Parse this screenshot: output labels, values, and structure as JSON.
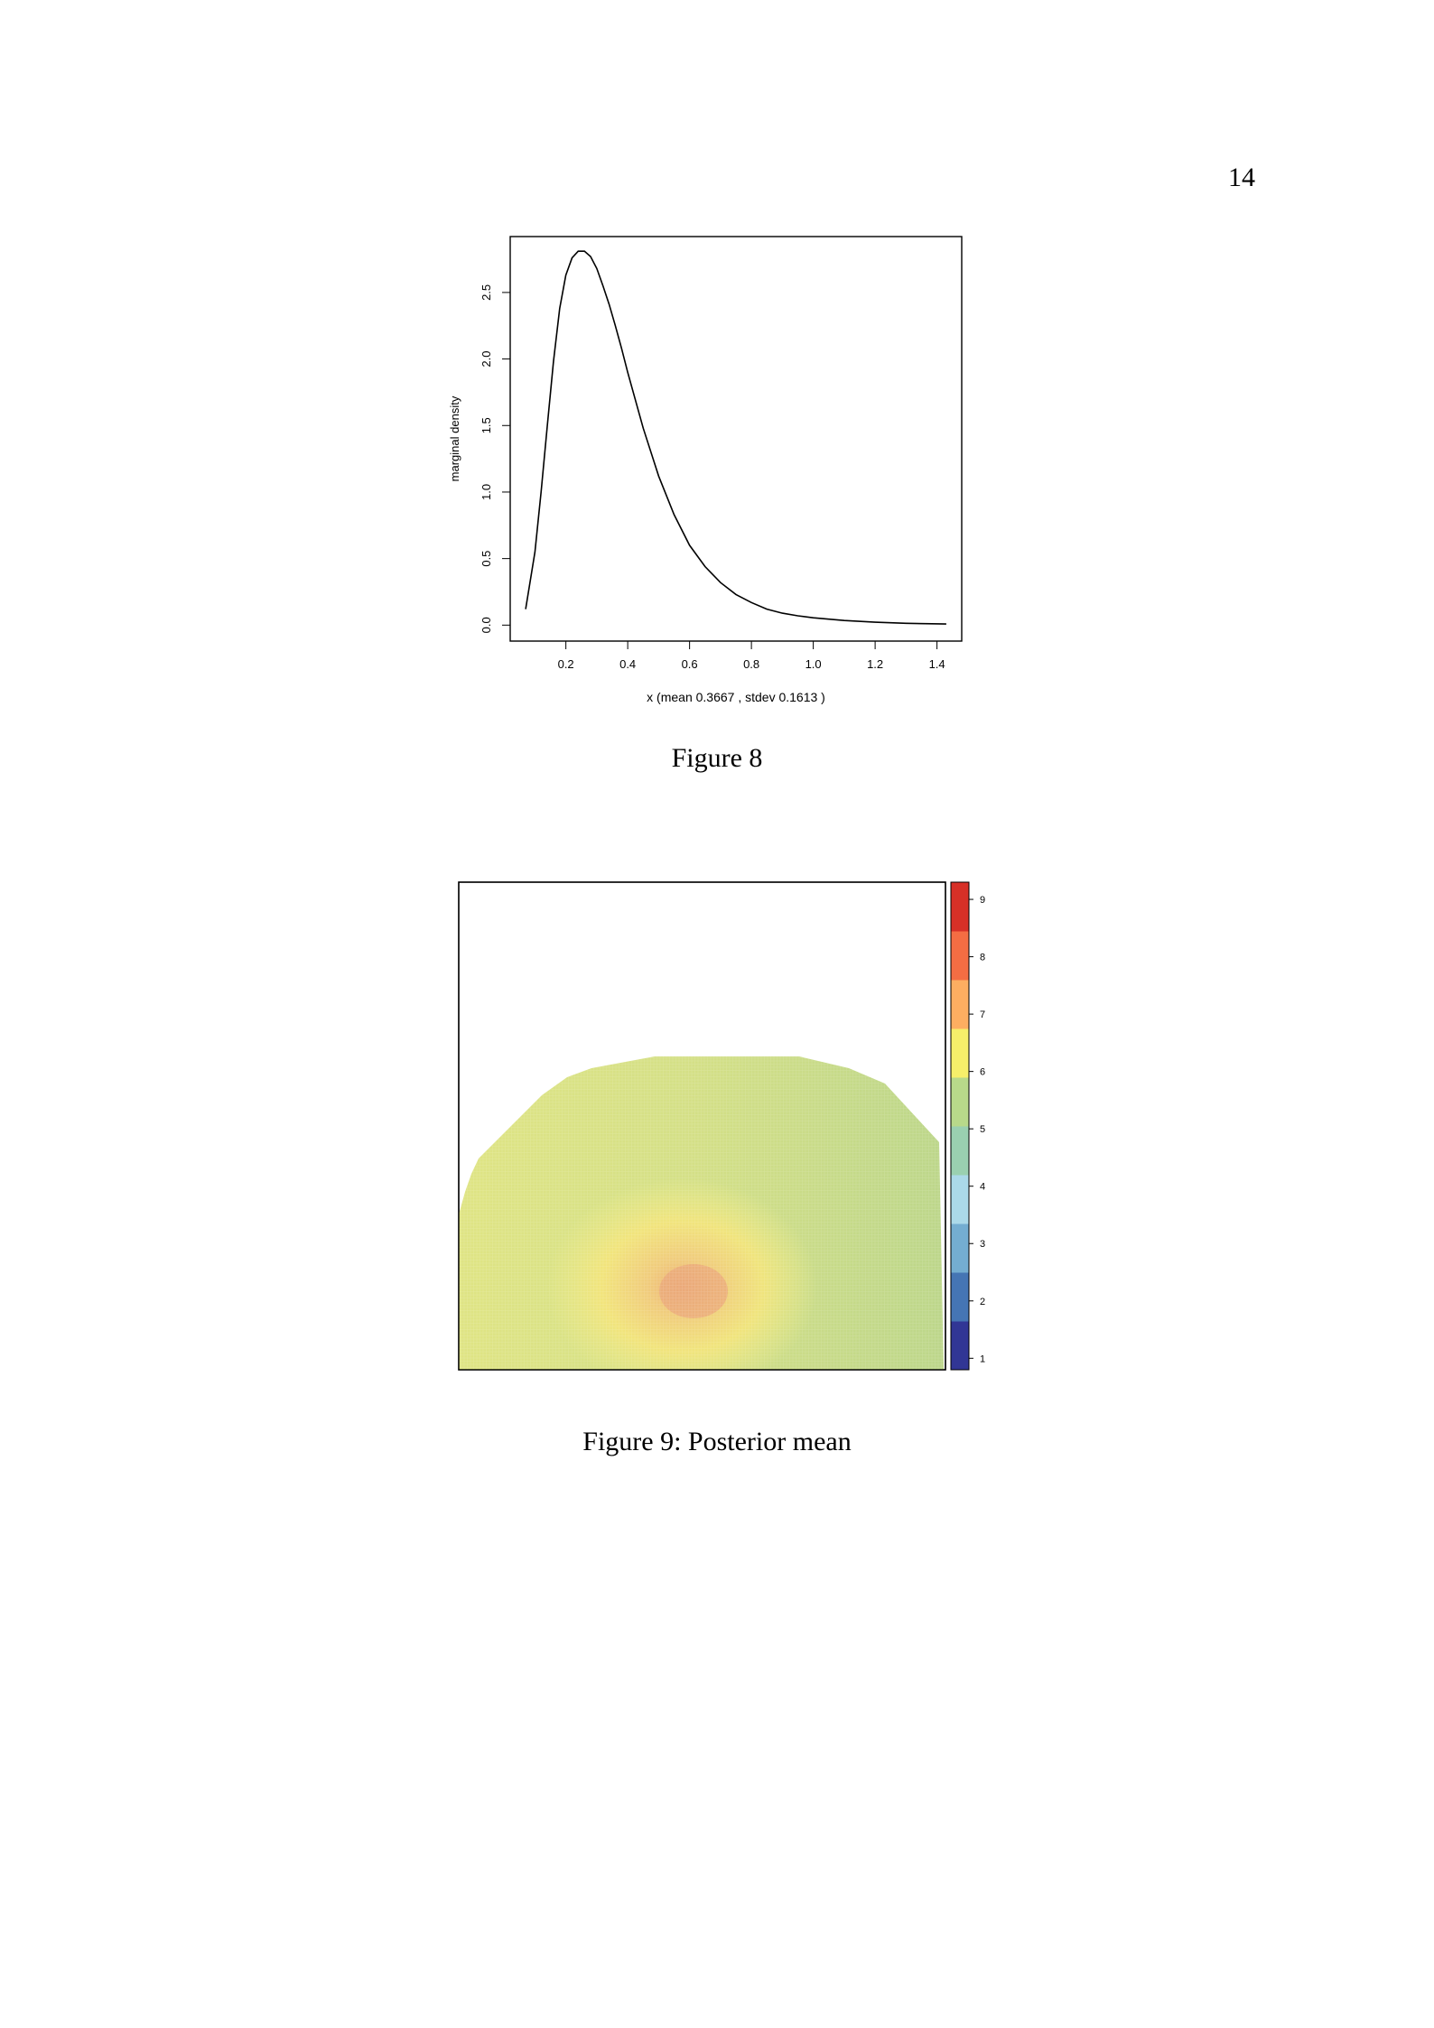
{
  "page": {
    "number": "14"
  },
  "figure8": {
    "caption": "Figure 8",
    "chart_data": {
      "type": "line",
      "title": "",
      "xlabel": "x (mean 0.3667 , stdev 0.1613 )",
      "ylabel": "marginal density",
      "xlim": [
        0.02,
        1.48
      ],
      "ylim": [
        -0.12,
        2.92
      ],
      "xticks": [
        0.2,
        0.4,
        0.6,
        0.8,
        1.0,
        1.2,
        1.4
      ],
      "xtick_labels": [
        "0.2",
        "0.4",
        "0.6",
        "0.8",
        "1.0",
        "1.2",
        "1.4"
      ],
      "yticks": [
        0.0,
        0.5,
        1.0,
        1.5,
        2.0,
        2.5
      ],
      "ytick_labels": [
        "0.0",
        "0.5",
        "1.0",
        "1.5",
        "2.0",
        "2.5"
      ],
      "grid": false,
      "series": [
        {
          "x": [
            0.07,
            0.1,
            0.12,
            0.14,
            0.16,
            0.18,
            0.2,
            0.22,
            0.24,
            0.26,
            0.28,
            0.3,
            0.32,
            0.34,
            0.36,
            0.38,
            0.4,
            0.45,
            0.5,
            0.55,
            0.6,
            0.65,
            0.7,
            0.75,
            0.8,
            0.85,
            0.9,
            0.95,
            1.0,
            1.1,
            1.2,
            1.3,
            1.43
          ],
          "y": [
            0.12,
            0.55,
            1.0,
            1.5,
            1.98,
            2.38,
            2.63,
            2.76,
            2.81,
            2.81,
            2.77,
            2.68,
            2.55,
            2.41,
            2.25,
            2.08,
            1.9,
            1.48,
            1.12,
            0.83,
            0.6,
            0.44,
            0.32,
            0.23,
            0.17,
            0.12,
            0.09,
            0.07,
            0.055,
            0.035,
            0.022,
            0.014,
            0.008
          ]
        }
      ]
    }
  },
  "figure9": {
    "caption": "Figure 9:  Posterior mean",
    "chart_data": {
      "type": "heatmap",
      "title": "",
      "xlabel": "",
      "ylabel": "",
      "description_values": {
        "background_level": 5.6,
        "peak_level": 7.2
      },
      "colorbar": {
        "min": 0.8,
        "max": 9.3,
        "ticks": [
          1,
          2,
          3,
          4,
          5,
          6,
          7,
          8,
          9
        ],
        "tick_labels": [
          "1",
          "2",
          "3",
          "4",
          "5",
          "6",
          "7",
          "8",
          "9"
        ],
        "colors": [
          "#313695",
          "#4575b4",
          "#74add1",
          "#abd9e9",
          "#9ad0b0",
          "#b8d98a",
          "#f6ef6a",
          "#fdae61",
          "#f46d43",
          "#d73027"
        ]
      }
    }
  }
}
